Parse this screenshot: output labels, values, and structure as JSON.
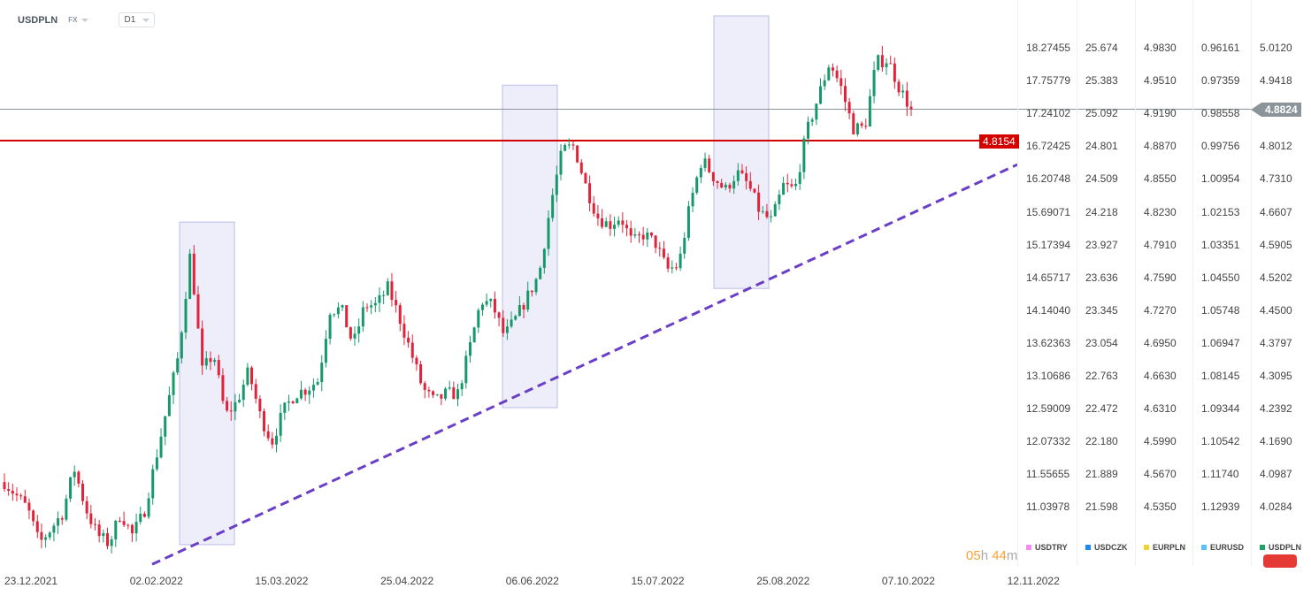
{
  "header": {
    "symbol": "USDPLN",
    "market": "FX",
    "timeframe": "D1"
  },
  "timer": {
    "hours": "05",
    "h": "h",
    "minutes": "44",
    "m": "m"
  },
  "price_tags": {
    "current": "4.8824",
    "level": "4.8154"
  },
  "axis_columns": [
    {
      "symbol": "USDTRY",
      "color": "#f78cf0",
      "values": [
        "18.27455",
        "17.75779",
        "17.24102",
        "16.72425",
        "16.20748",
        "15.69071",
        "15.17394",
        "14.65717",
        "14.14040",
        "13.62363",
        "13.10686",
        "12.59009",
        "12.07332",
        "11.55655",
        "11.03978"
      ]
    },
    {
      "symbol": "USDCZK",
      "color": "#1e88f5",
      "values": [
        "25.674",
        "25.383",
        "25.092",
        "24.801",
        "24.509",
        "24.218",
        "23.927",
        "23.636",
        "23.345",
        "23.054",
        "22.763",
        "22.472",
        "22.180",
        "21.889",
        "21.598"
      ]
    },
    {
      "symbol": "EURPLN",
      "color": "#f5d12a",
      "values": [
        "4.9830",
        "4.9510",
        "4.9190",
        "4.8870",
        "4.8550",
        "4.8230",
        "4.7910",
        "4.7590",
        "4.7270",
        "4.6950",
        "4.6630",
        "4.6310",
        "4.5990",
        "4.5670",
        "4.5350"
      ]
    },
    {
      "symbol": "EURUSD",
      "color": "#5ac0f5",
      "values": [
        "0.96161",
        "0.97359",
        "0.98558",
        "0.99756",
        "1.00954",
        "1.02153",
        "1.03351",
        "1.04550",
        "1.05748",
        "1.06947",
        "1.08145",
        "1.09344",
        "1.10542",
        "1.11740",
        "1.12939"
      ]
    },
    {
      "symbol": "USDPLN",
      "color": "#22a06b",
      "values": [
        "5.0120",
        "4.9418",
        "",
        "4.8012",
        "4.7310",
        "4.6607",
        "4.5905",
        "4.5202",
        "4.4500",
        "4.3797",
        "4.3095",
        "4.2392",
        "4.1690",
        "4.0987",
        "4.0284"
      ]
    }
  ],
  "chart_data": {
    "type": "candlestick",
    "symbol": "USDPLN",
    "ylim": [
      4.0284,
      5.012
    ],
    "x_tick_labels": [
      "23.12.2021",
      "02.02.2022",
      "15.03.2022",
      "25.04.2022",
      "06.06.2022",
      "15.07.2022",
      "25.08.2022",
      "07.10.2022",
      "12.11.2022"
    ],
    "close_path": [
      4.085,
      4.057,
      4.028,
      3.953,
      3.985,
      4.019,
      4.114,
      4.028,
      3.972,
      3.953,
      4.019,
      3.972,
      4.019,
      4.132,
      4.246,
      4.36,
      4.577,
      4.322,
      4.36,
      4.227,
      4.256,
      4.322,
      4.227,
      4.17,
      4.237,
      4.274,
      4.284,
      4.303,
      4.454,
      4.454,
      4.378,
      4.463,
      4.463,
      4.501,
      4.435,
      4.36,
      4.284,
      4.256,
      4.274,
      4.274,
      4.369,
      4.473,
      4.463,
      4.397,
      4.435,
      4.482,
      4.53,
      4.681,
      4.795,
      4.804,
      4.719,
      4.653,
      4.634,
      4.653,
      4.596,
      4.615,
      4.596,
      4.539,
      4.548,
      4.681,
      4.776,
      4.738,
      4.709,
      4.747,
      4.72,
      4.662,
      4.643,
      4.719,
      4.71,
      4.832,
      4.908,
      4.984,
      4.927,
      4.842,
      4.842,
      4.984,
      4.988,
      4.927,
      4.8824
    ],
    "last_price": 4.8824,
    "horizontal_level": 4.8154,
    "trendline": {
      "start": 3.909,
      "end": 4.764
    },
    "highlight_boxes": [
      {
        "high": 4.641,
        "low": 3.951
      },
      {
        "high": 4.934,
        "low": 4.244
      },
      {
        "high": 5.082,
        "low": 4.499
      }
    ],
    "colors": {
      "up": "#16996a",
      "down": "#e0233a",
      "level": "#d40000",
      "trendline": "#6a3fc8",
      "box": "#eeeefa",
      "last": "#8a9499"
    }
  }
}
